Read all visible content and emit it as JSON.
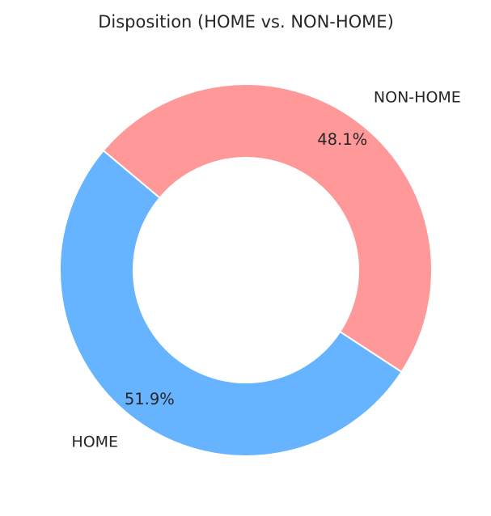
{
  "chart_data": {
    "type": "pie",
    "title": "Disposition (HOME vs. NON-HOME)",
    "donut": true,
    "categories": [
      "HOME",
      "NON-HOME"
    ],
    "values": [
      51.9,
      48.1
    ],
    "pct_labels": [
      "51.9%",
      "48.1%"
    ],
    "colors": [
      "#66b3ff",
      "#ff9999"
    ],
    "start_angle_deg": 140,
    "direction": "counterclockwise",
    "legend": "none"
  }
}
